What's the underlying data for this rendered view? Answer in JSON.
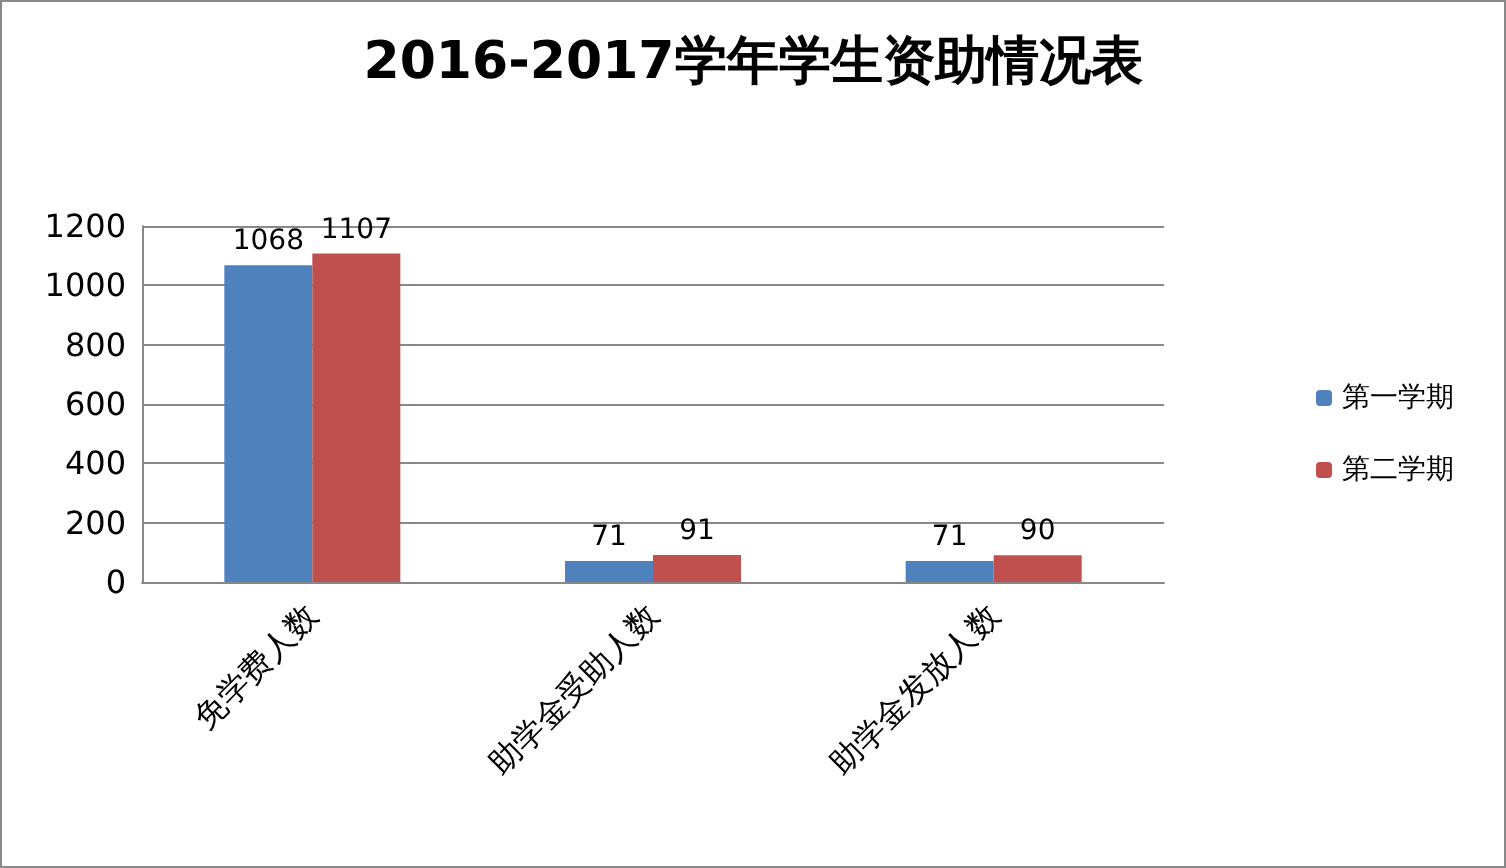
{
  "chart_data": {
    "type": "bar",
    "title": "2016-2017学年学生资助情况表",
    "categories": [
      "免学费人数",
      "助学金受助人数",
      "助学金发放人数"
    ],
    "series": [
      {
        "name": "第一学期",
        "color": "#4f81bd",
        "values": [
          1068,
          71,
          71
        ]
      },
      {
        "name": "第二学期",
        "color": "#c0504d",
        "values": [
          1107,
          91,
          90
        ]
      }
    ],
    "ylim": [
      0,
      1200
    ],
    "yticks": [
      0,
      200,
      400,
      600,
      800,
      1000,
      1200
    ],
    "grid": "y",
    "legend": "right",
    "data_labels": true
  }
}
